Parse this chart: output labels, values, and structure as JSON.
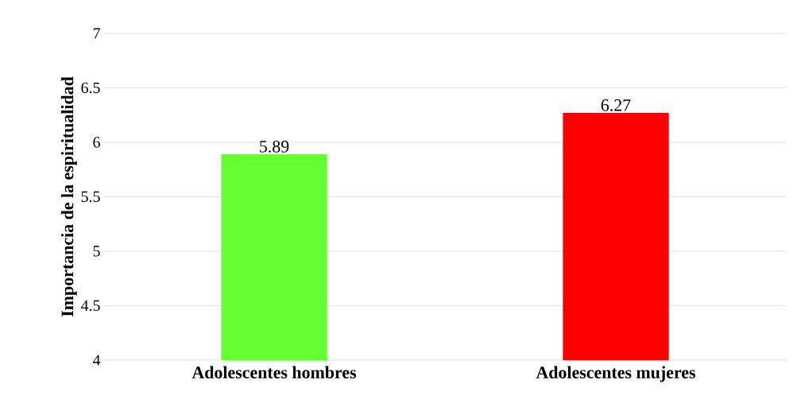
{
  "chart_data": {
    "type": "bar",
    "ylabel": "Importancia de la espiritualidad",
    "categories": [
      "Adolescentes hombres",
      "Adolescentes mujeres"
    ],
    "values": [
      5.89,
      6.27
    ],
    "colors": [
      "#66ff33",
      "#ff0000"
    ],
    "value_labels": [
      "5.89",
      "6.27"
    ],
    "ylim": [
      4,
      7
    ],
    "yticks": [
      4,
      4.5,
      5,
      5.5,
      6,
      6.5,
      7
    ],
    "grid": "y"
  }
}
